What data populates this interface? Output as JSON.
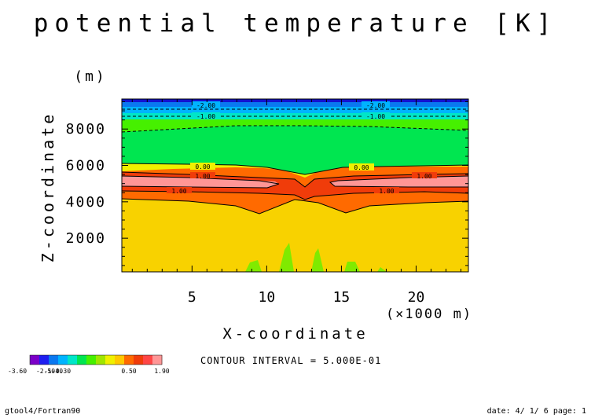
{
  "chart_data": {
    "type": "contour",
    "title": "potential temperature [K]",
    "xlabel": "X-coordinate",
    "ylabel": "Z-coordinate",
    "x_unit_label": "(×1000 m)",
    "y_unit_label": "(m)",
    "xlim": [
      0.3,
      23.5
    ],
    "ylim": [
      150,
      9650
    ],
    "x_ticks": [
      5,
      10,
      15,
      20
    ],
    "y_ticks": [
      2000,
      4000,
      6000,
      8000
    ],
    "contour_interval_text": "CONTOUR INTERVAL = 5.000E-01",
    "contour_labels": [
      "-2.00",
      "-1.00",
      "0.00",
      "1.00",
      "1.00",
      "-2.00",
      "-1.00",
      "0.00",
      "1.00",
      "1.00"
    ],
    "colorbar": {
      "tick_labels": [
        "-3.60",
        "-2.50",
        "-1.40",
        "-0.30",
        "0.50",
        "1.90"
      ],
      "colors": [
        "#7b00c8",
        "#1e1ef0",
        "#0a78f0",
        "#00b4ff",
        "#00e6c8",
        "#00e650",
        "#46f000",
        "#a0e600",
        "#f0f000",
        "#ffc800",
        "#ff6a00",
        "#f03c0a",
        "#ff4646",
        "#ff9696"
      ]
    },
    "fill_colors": {
      "top_band": "#1212d0",
      "blue_band": "#0a78f0",
      "cyan_band": "#00c8c8",
      "green_band": "#00e650",
      "light_green": "#80ea00",
      "yellow_thin": "#f0f000",
      "orange": "#ff6a00",
      "red": "#f03c0a",
      "light_red": "#ff9696",
      "lower_yellow": "#f8d200"
    }
  },
  "footer": {
    "left": "gtool4/Fortran90",
    "right": "date: 4/ 1/ 6 page: 1"
  }
}
